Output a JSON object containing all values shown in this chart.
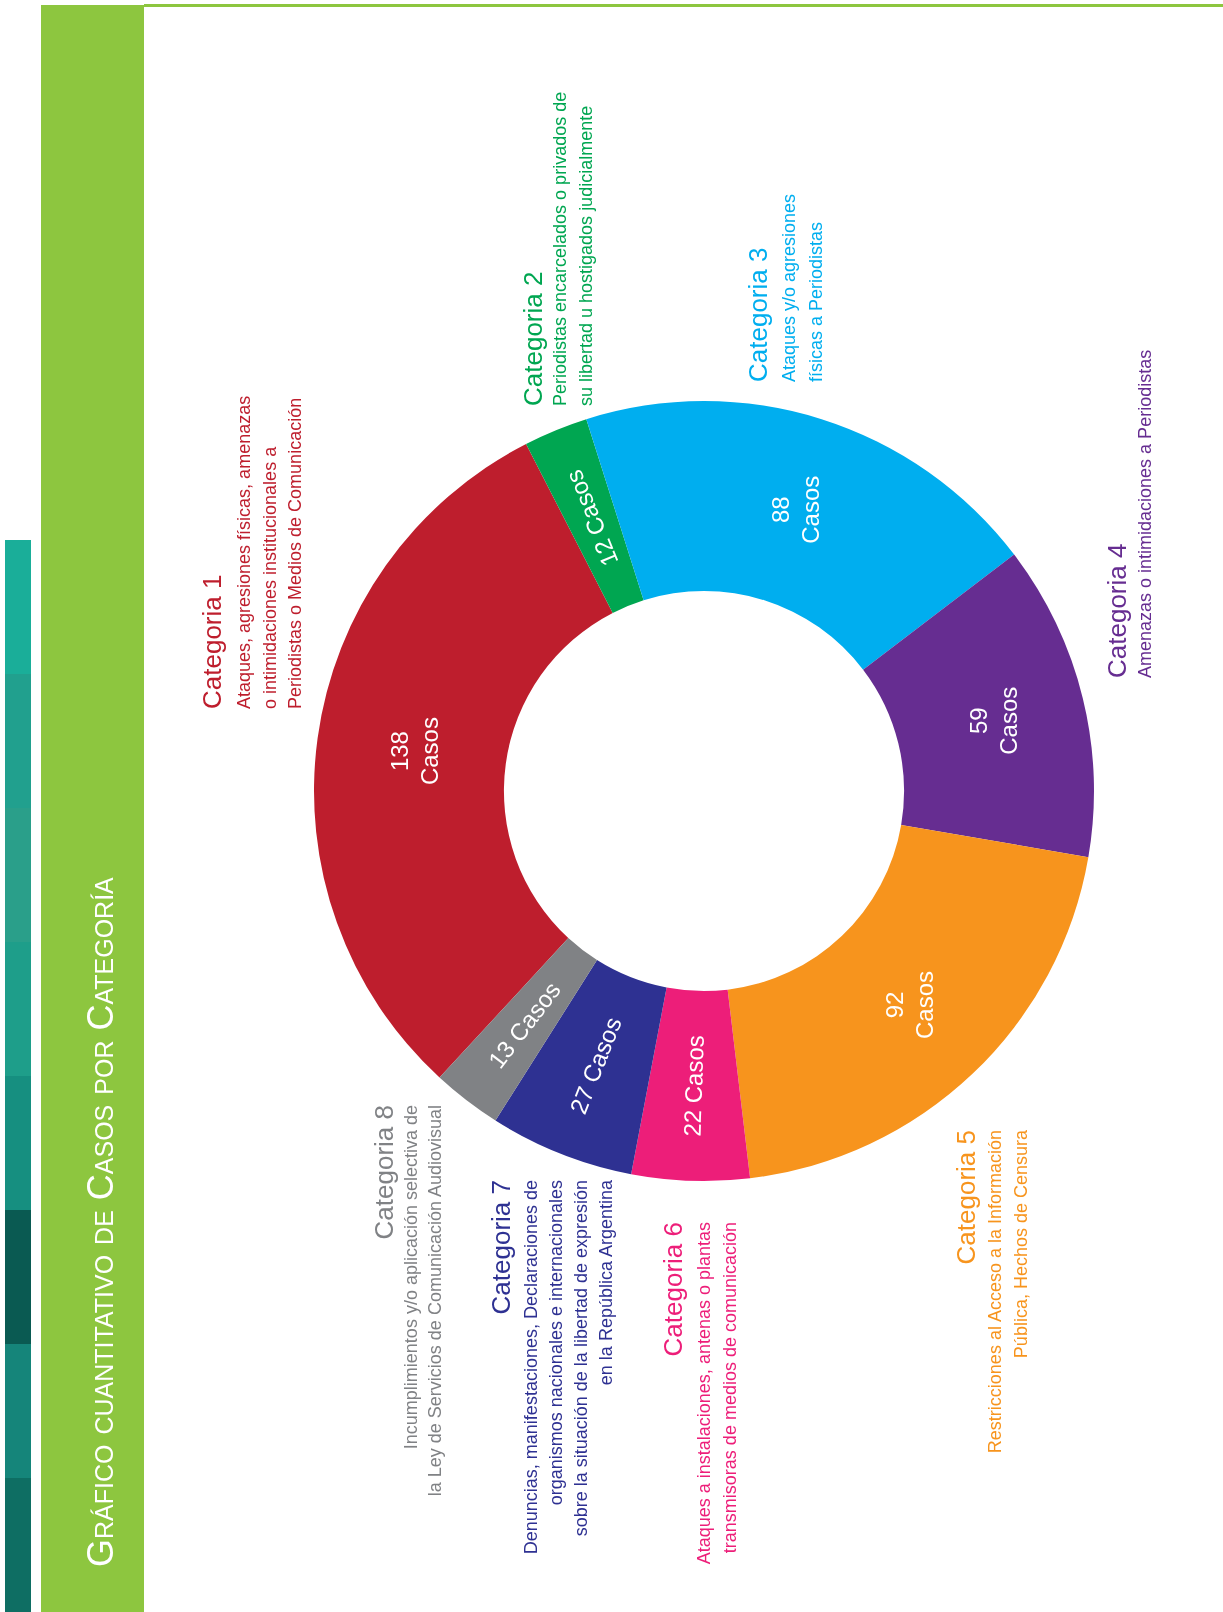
{
  "chart_data": {
    "type": "donut",
    "title": "Gráfico cuantitativo de Casos por Categoría",
    "categories": [
      "Categoria 1",
      "Categoria 2",
      "Categoria 3",
      "Categoria 4",
      "Categoria 5",
      "Categoria 6",
      "Categoria 7",
      "Categoria 8"
    ],
    "values": [
      138,
      12,
      88,
      59,
      92,
      22,
      27,
      13
    ],
    "colors": [
      "#be1e2d",
      "#00a651",
      "#00aeef",
      "#662d91",
      "#f7941d",
      "#ed1e79",
      "#2e3192",
      "#808285"
    ],
    "value_labels": [
      "138 Casos",
      "12 Casos",
      "88 Casos",
      "59 Casos",
      "92 Casos",
      "22 Casos",
      "27 Casos",
      "13 Casos"
    ],
    "annotations": [
      "Ataques, agresiones físicas, amenazas o intimidaciones institucionales a Periodistas o Medios de Comunicación",
      "Periodistas encarcelados o privados de su libertad u hostigados judicialmente",
      "Ataques y/o agresiones físicas a Periodistas",
      "Amenazas o intimidaciones a Periodistas",
      "Restricciones al Acceso a la Información Pública, Hechos de Censura",
      "Ataques a instalaciones, antenas o plantas transmisoras de medios de comunicación",
      "Denuncias, manifestaciones, Declaraciones de organismos nacionales e internacionales sobre la situación de la libertad de expresión en la República Argentina",
      "Incumplimientos y/o aplicación selectiva de la Ley de Servicios de Comunicación Audiovisual"
    ]
  }
}
